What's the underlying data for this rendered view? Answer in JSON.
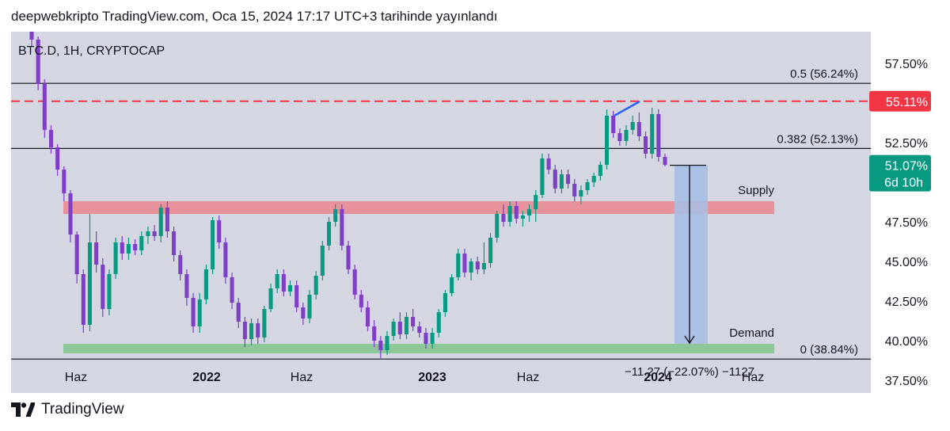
{
  "header": {
    "publish_line": "deepwebkripto TradingView.com, Oca 15, 2024 17:17 UTC+3 tarihinde yayınlandı"
  },
  "symbol_line": "BTC.D, 1H, CRYPTOCAP",
  "footer": {
    "brand": "TradingView",
    "logo_icon": "tradingview-logo-icon"
  },
  "colors": {
    "plot_bg": "#d4d6e2",
    "up": "#089981",
    "down": "#7e3ec6",
    "supply_zone": "#e8929c",
    "demand_zone": "#8cc79a",
    "projection": "#a7bee3",
    "resistance_line": "#f23645",
    "trend_line": "#2962ff",
    "current_badge": "#089981"
  },
  "chart_data": {
    "type": "candlestick",
    "y_axis": {
      "ticks": [
        "57.50%",
        "52.50%",
        "47.50%",
        "45.00%",
        "42.50%",
        "40.00%",
        "37.50%"
      ],
      "range": [
        36.7,
        59.5
      ]
    },
    "x_axis": {
      "ticks": [
        {
          "label": "Haz",
          "bold": false
        },
        {
          "label": "2022",
          "bold": true
        },
        {
          "label": "Haz",
          "bold": false
        },
        {
          "label": "2023",
          "bold": true
        },
        {
          "label": "Haz",
          "bold": false
        },
        {
          "label": "2024",
          "bold": true
        },
        {
          "label": "Haz",
          "bold": false
        }
      ]
    },
    "fib_levels": [
      {
        "label": "0.5 (56.24%)",
        "value": 56.24
      },
      {
        "label": "0.382 (52.13%)",
        "value": 52.13
      },
      {
        "label": "0 (38.84%)",
        "value": 38.84
      }
    ],
    "resistance": {
      "value": 55.11,
      "label": "55.11%"
    },
    "current": {
      "value": 51.07,
      "label": "51.07%",
      "countdown": "6d 10h"
    },
    "zones": [
      {
        "name": "Supply",
        "low": 48.0,
        "high": 48.8
      },
      {
        "name": "Demand",
        "low": 39.2,
        "high": 39.8
      }
    ],
    "measure": {
      "label": "−11.27 (−22.07%) −1127",
      "from": 51.07,
      "to": 39.8
    },
    "trend_line": {
      "from": 54.2,
      "to": 55.1
    },
    "candles": [
      [
        60.0,
        60.4,
        58.6,
        59.0
      ],
      [
        59.0,
        59.2,
        55.8,
        56.2
      ],
      [
        56.2,
        56.5,
        52.8,
        53.3
      ],
      [
        53.3,
        53.6,
        51.8,
        52.2
      ],
      [
        52.2,
        52.4,
        50.4,
        50.8
      ],
      [
        50.8,
        51.0,
        48.8,
        49.3
      ],
      [
        49.3,
        49.5,
        46.2,
        46.7
      ],
      [
        46.7,
        46.9,
        43.6,
        44.2
      ],
      [
        44.2,
        44.5,
        40.5,
        41.0
      ],
      [
        41.0,
        48.0,
        40.6,
        46.2
      ],
      [
        46.2,
        46.9,
        44.3,
        44.8
      ],
      [
        44.8,
        45.2,
        41.5,
        42.0
      ],
      [
        42.0,
        44.5,
        41.6,
        44.2
      ],
      [
        44.2,
        46.5,
        43.9,
        46.2
      ],
      [
        46.2,
        46.6,
        45.1,
        45.5
      ],
      [
        45.5,
        46.5,
        45.1,
        46.1
      ],
      [
        46.1,
        46.4,
        45.4,
        45.7
      ],
      [
        45.7,
        46.9,
        45.4,
        46.6
      ],
      [
        46.6,
        47.2,
        46.1,
        46.9
      ],
      [
        46.9,
        47.3,
        46.3,
        46.6
      ],
      [
        46.6,
        48.6,
        46.2,
        48.4
      ],
      [
        48.4,
        48.8,
        46.5,
        46.9
      ],
      [
        46.9,
        47.2,
        45.0,
        45.4
      ],
      [
        45.4,
        45.7,
        43.8,
        44.2
      ],
      [
        44.2,
        44.5,
        42.2,
        42.7
      ],
      [
        42.7,
        43.0,
        40.5,
        40.9
      ],
      [
        40.9,
        43.0,
        40.5,
        42.6
      ],
      [
        42.6,
        44.8,
        42.3,
        44.5
      ],
      [
        44.5,
        47.8,
        44.2,
        47.6
      ],
      [
        47.6,
        47.9,
        45.8,
        46.2
      ],
      [
        46.2,
        46.5,
        43.6,
        44.0
      ],
      [
        44.0,
        44.3,
        42.0,
        42.4
      ],
      [
        42.4,
        42.7,
        40.8,
        41.2
      ],
      [
        41.2,
        41.5,
        39.6,
        40.1
      ],
      [
        40.1,
        41.4,
        39.7,
        41.1
      ],
      [
        41.1,
        41.4,
        39.8,
        40.2
      ],
      [
        40.2,
        42.2,
        39.9,
        42.0
      ],
      [
        42.0,
        43.6,
        41.8,
        43.3
      ],
      [
        43.3,
        44.5,
        43.0,
        44.2
      ],
      [
        44.2,
        44.5,
        42.8,
        43.1
      ],
      [
        43.1,
        43.8,
        42.8,
        43.5
      ],
      [
        43.5,
        43.8,
        41.8,
        42.1
      ],
      [
        42.1,
        42.4,
        41.0,
        41.4
      ],
      [
        41.4,
        43.2,
        41.1,
        42.9
      ],
      [
        42.9,
        44.4,
        42.6,
        44.1
      ],
      [
        44.1,
        46.3,
        43.8,
        46.0
      ],
      [
        46.0,
        47.8,
        45.7,
        47.5
      ],
      [
        47.5,
        48.6,
        47.2,
        48.3
      ],
      [
        48.3,
        48.6,
        45.7,
        46.0
      ],
      [
        46.0,
        46.3,
        44.2,
        44.5
      ],
      [
        44.5,
        44.8,
        42.6,
        42.9
      ],
      [
        42.9,
        43.2,
        41.8,
        42.1
      ],
      [
        42.1,
        42.5,
        40.6,
        40.9
      ],
      [
        40.9,
        41.3,
        39.6,
        40.0
      ],
      [
        40.0,
        40.3,
        38.9,
        39.4
      ],
      [
        39.4,
        40.6,
        39.1,
        40.3
      ],
      [
        40.3,
        41.4,
        40.0,
        41.2
      ],
      [
        41.2,
        41.8,
        40.1,
        40.4
      ],
      [
        40.4,
        41.8,
        40.1,
        41.5
      ],
      [
        41.5,
        42.0,
        40.6,
        40.9
      ],
      [
        40.9,
        41.2,
        40.2,
        40.5
      ],
      [
        40.5,
        40.8,
        39.5,
        39.8
      ],
      [
        39.8,
        40.8,
        39.5,
        40.5
      ],
      [
        40.5,
        42.0,
        40.2,
        41.8
      ],
      [
        41.8,
        43.2,
        41.5,
        43.0
      ],
      [
        43.0,
        44.2,
        42.8,
        44.0
      ],
      [
        44.0,
        45.8,
        43.8,
        45.5
      ],
      [
        45.5,
        45.8,
        44.0,
        44.3
      ],
      [
        44.3,
        45.2,
        43.8,
        45.0
      ],
      [
        45.0,
        45.3,
        44.2,
        44.5
      ],
      [
        44.5,
        46.2,
        44.2,
        44.9
      ],
      [
        44.9,
        46.8,
        44.6,
        46.5
      ],
      [
        46.5,
        48.2,
        46.2,
        48.0
      ],
      [
        48.0,
        48.6,
        47.2,
        47.5
      ],
      [
        47.5,
        48.8,
        47.2,
        48.5
      ],
      [
        48.5,
        48.8,
        47.4,
        47.7
      ],
      [
        47.7,
        48.2,
        47.2,
        47.9
      ],
      [
        47.9,
        48.6,
        47.5,
        48.3
      ],
      [
        48.3,
        49.5,
        47.5,
        49.2
      ],
      [
        49.2,
        51.8,
        49.0,
        51.5
      ],
      [
        51.5,
        51.8,
        50.5,
        50.8
      ],
      [
        50.8,
        51.1,
        49.3,
        49.6
      ],
      [
        49.6,
        50.8,
        49.3,
        50.5
      ],
      [
        50.5,
        50.8,
        49.6,
        49.9
      ],
      [
        49.9,
        50.2,
        48.8,
        49.1
      ],
      [
        49.1,
        49.8,
        48.6,
        49.5
      ],
      [
        49.5,
        50.2,
        49.2,
        50.0
      ],
      [
        50.0,
        50.6,
        49.7,
        50.4
      ],
      [
        50.4,
        51.3,
        50.1,
        51.1
      ],
      [
        51.1,
        54.6,
        50.8,
        54.2
      ],
      [
        54.2,
        54.5,
        52.8,
        53.1
      ],
      [
        53.1,
        53.4,
        52.3,
        52.6
      ],
      [
        52.6,
        53.6,
        52.3,
        53.3
      ],
      [
        53.3,
        54.2,
        53.0,
        53.8
      ],
      [
        53.8,
        54.4,
        52.6,
        52.9
      ],
      [
        52.9,
        53.2,
        51.5,
        51.8
      ],
      [
        51.8,
        54.7,
        51.5,
        54.3
      ],
      [
        54.3,
        54.6,
        51.3,
        51.6
      ],
      [
        51.6,
        51.8,
        51.0,
        51.1
      ]
    ]
  }
}
